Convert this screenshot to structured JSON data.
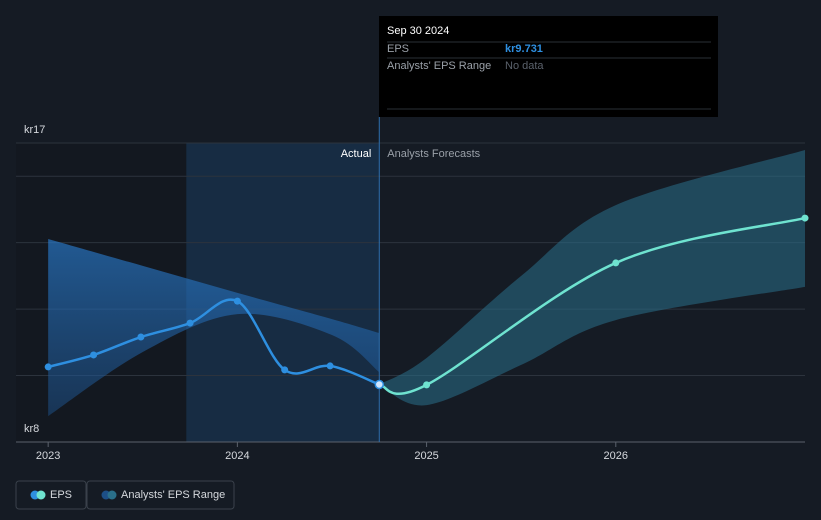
{
  "chart_data": {
    "type": "line",
    "xlim": [
      2022.83,
      2027.0
    ],
    "xticks": [
      2023,
      2024,
      2025,
      2026
    ],
    "ylim": [
      8,
      17
    ],
    "yticks": [
      {
        "value": 8,
        "label": "kr8"
      },
      {
        "value": 17,
        "label": "kr17"
      }
    ],
    "grid_lines": [
      10,
      12,
      14,
      16,
      17
    ],
    "divider_x": 2024.75,
    "highlight_x": [
      2023.73,
      2024.75
    ],
    "annotations": {
      "left": "Actual",
      "right": "Analysts Forecasts"
    },
    "series": [
      {
        "name": "EPS",
        "color": "#2e8fe0",
        "forecast_color": "#6fe3d0",
        "x": [
          2023,
          2023.24,
          2023.49,
          2023.75,
          2024.0,
          2024.25,
          2024.49,
          2024.75,
          2025.0,
          2026.0,
          2027.0
        ],
        "values": [
          10.26,
          10.62,
          11.16,
          11.58,
          12.24,
          10.17,
          10.29,
          9.731,
          9.72,
          13.39,
          14.74
        ]
      }
    ],
    "range": {
      "name": "Analysts' EPS Range",
      "color": "#2a6f8a",
      "past": {
        "x": [
          2023,
          2023.5,
          2024,
          2024.5,
          2024.75
        ],
        "low": [
          8.78,
          10.71,
          11.85,
          11.22,
          10.1
        ],
        "high": [
          14.11,
          13.3,
          12.49,
          11.7,
          11.28
        ]
      },
      "forecast": {
        "x": [
          2024.75,
          2025,
          2025.5,
          2026,
          2027
        ],
        "low": [
          9.731,
          9.11,
          10.32,
          11.67,
          12.67
        ],
        "high": [
          9.731,
          10.53,
          13.0,
          15.13,
          16.79
        ]
      }
    },
    "tooltip": {
      "date": "Sep 30 2024",
      "rows": [
        {
          "label": "EPS",
          "value": 9.731,
          "value_label": "kr9.731"
        },
        {
          "label": "Analysts' EPS Range",
          "value_label": "No data"
        }
      ]
    },
    "legend": [
      "EPS",
      "Analysts' EPS Range"
    ]
  }
}
